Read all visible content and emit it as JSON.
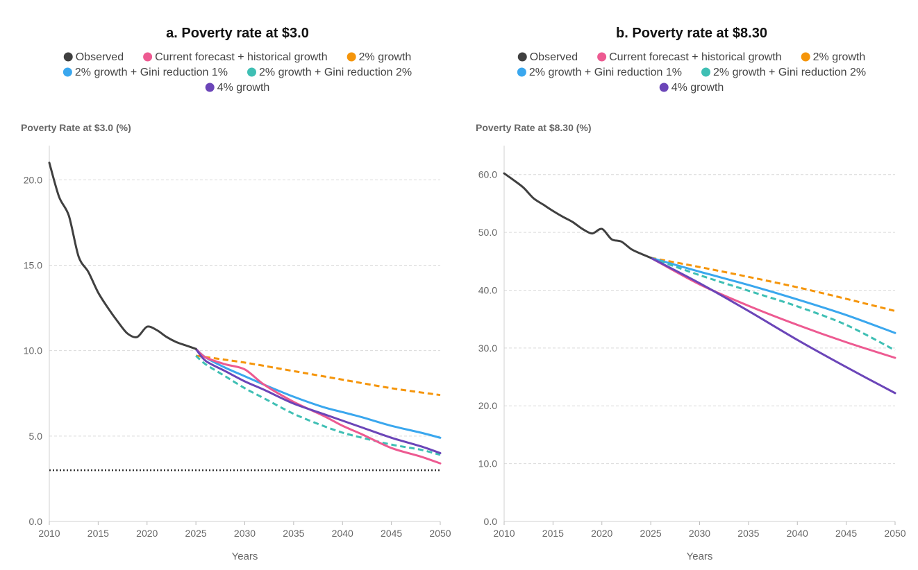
{
  "colors": {
    "observed": "#404040",
    "historical": "#ed5a91",
    "growth2": "#f5950a",
    "gini1": "#3aa7ee",
    "gini2": "#3fbfb4",
    "growth4": "#6b45b8"
  },
  "legend": [
    {
      "key": "observed",
      "label": "Observed"
    },
    {
      "key": "historical",
      "label": "Current forecast + historical growth"
    },
    {
      "key": "growth2",
      "label": "2% growth"
    },
    {
      "key": "gini1",
      "label": "2% growth + Gini reduction 1%"
    },
    {
      "key": "gini2",
      "label": "2% growth + Gini reduction 2%"
    },
    {
      "key": "growth4",
      "label": "4% growth"
    }
  ],
  "chart_data": [
    {
      "type": "line",
      "title": "a. Poverty rate at $3.0",
      "ylabel": "Poverty Rate at $3.0 (%)",
      "xlabel": "Years",
      "xlim": [
        2010,
        2050
      ],
      "ylim": [
        0,
        22
      ],
      "xticks": [
        2010,
        2015,
        2020,
        2025,
        2030,
        2035,
        2040,
        2045,
        2050
      ],
      "yticks": [
        0,
        5,
        10,
        15,
        20
      ],
      "ytick_labels": [
        "0.0",
        "5.0",
        "10.0",
        "15.0",
        "20.0"
      ],
      "grid": true,
      "reference_line": {
        "y": 3.0,
        "style": "dotted"
      },
      "series": [
        {
          "name": "Observed",
          "key": "observed",
          "dashed": false,
          "x": [
            2010,
            2011,
            2012,
            2013,
            2014,
            2015,
            2016,
            2017,
            2018,
            2019,
            2020,
            2021,
            2022,
            2023,
            2024,
            2025
          ],
          "y": [
            21.0,
            19.0,
            17.9,
            15.5,
            14.6,
            13.4,
            12.5,
            11.7,
            11.0,
            10.8,
            11.4,
            11.2,
            10.8,
            10.5,
            10.3,
            10.1
          ]
        },
        {
          "name": "Current forecast + historical growth",
          "key": "historical",
          "dashed": false,
          "x": [
            2025,
            2026,
            2028,
            2030,
            2032,
            2035,
            2038,
            2040,
            2042,
            2045,
            2048,
            2050
          ],
          "y": [
            10.1,
            9.6,
            9.2,
            8.9,
            8.0,
            7.0,
            6.2,
            5.6,
            5.1,
            4.3,
            3.8,
            3.4
          ]
        },
        {
          "name": "2% growth",
          "key": "growth2",
          "dashed": true,
          "x": [
            2025,
            2030,
            2035,
            2040,
            2045,
            2050
          ],
          "y": [
            9.7,
            9.3,
            8.8,
            8.3,
            7.8,
            7.4
          ]
        },
        {
          "name": "2% growth + Gini reduction 1%",
          "key": "gini1",
          "dashed": false,
          "x": [
            2025,
            2026,
            2028,
            2030,
            2032,
            2035,
            2038,
            2040,
            2042,
            2045,
            2048,
            2050
          ],
          "y": [
            10.1,
            9.6,
            9.0,
            8.5,
            8.0,
            7.3,
            6.7,
            6.4,
            6.1,
            5.6,
            5.2,
            4.9
          ]
        },
        {
          "name": "2% growth + Gini reduction 2%",
          "key": "gini2",
          "dashed": true,
          "x": [
            2025,
            2026,
            2028,
            2030,
            2032,
            2035,
            2038,
            2040,
            2042,
            2045,
            2048,
            2050
          ],
          "y": [
            9.7,
            9.2,
            8.5,
            7.8,
            7.2,
            6.3,
            5.6,
            5.2,
            4.9,
            4.5,
            4.2,
            3.9
          ]
        },
        {
          "name": "4% growth",
          "key": "growth4",
          "dashed": false,
          "x": [
            2025,
            2026,
            2028,
            2030,
            2032,
            2035,
            2038,
            2040,
            2042,
            2045,
            2048,
            2050
          ],
          "y": [
            10.1,
            9.4,
            8.8,
            8.2,
            7.7,
            6.9,
            6.3,
            5.9,
            5.5,
            4.9,
            4.4,
            4.0
          ]
        }
      ]
    },
    {
      "type": "line",
      "title": "b. Poverty rate at $8.30",
      "ylabel": "Poverty Rate at $8.30 (%)",
      "xlabel": "Years",
      "xlim": [
        2010,
        2050
      ],
      "ylim": [
        0,
        65
      ],
      "xticks": [
        2010,
        2015,
        2020,
        2025,
        2030,
        2035,
        2040,
        2045,
        2050
      ],
      "yticks": [
        0,
        10,
        20,
        30,
        40,
        50,
        60
      ],
      "ytick_labels": [
        "0.0",
        "10.0",
        "20.0",
        "30.0",
        "40.0",
        "50.0",
        "60.0"
      ],
      "grid": true,
      "series": [
        {
          "name": "Observed",
          "key": "observed",
          "dashed": false,
          "x": [
            2010,
            2011,
            2012,
            2013,
            2014,
            2015,
            2016,
            2017,
            2018,
            2019,
            2020,
            2021,
            2022,
            2023,
            2024,
            2025
          ],
          "y": [
            60.2,
            59.0,
            57.7,
            55.9,
            54.8,
            53.7,
            52.7,
            51.8,
            50.6,
            49.8,
            50.6,
            48.8,
            48.4,
            47.1,
            46.3,
            45.6
          ]
        },
        {
          "name": "Current forecast + historical growth",
          "key": "historical",
          "dashed": false,
          "x": [
            2025,
            2030,
            2035,
            2040,
            2045,
            2050
          ],
          "y": [
            45.6,
            41.0,
            37.3,
            34.0,
            31.0,
            28.3
          ]
        },
        {
          "name": "2% growth",
          "key": "growth2",
          "dashed": true,
          "x": [
            2025,
            2030,
            2035,
            2040,
            2045,
            2050
          ],
          "y": [
            45.6,
            44.0,
            42.3,
            40.5,
            38.5,
            36.4
          ]
        },
        {
          "name": "2% growth + Gini reduction 1%",
          "key": "gini1",
          "dashed": false,
          "x": [
            2025,
            2030,
            2035,
            2040,
            2045,
            2050
          ],
          "y": [
            45.6,
            43.2,
            40.9,
            38.4,
            35.7,
            32.6
          ]
        },
        {
          "name": "2% growth + Gini reduction 2%",
          "key": "gini2",
          "dashed": true,
          "x": [
            2025,
            2030,
            2035,
            2040,
            2045,
            2050
          ],
          "y": [
            45.6,
            42.6,
            39.9,
            37.2,
            34.0,
            29.6
          ]
        },
        {
          "name": "4% growth",
          "key": "growth4",
          "dashed": false,
          "x": [
            2025,
            2030,
            2035,
            2040,
            2045,
            2050
          ],
          "y": [
            45.6,
            41.2,
            36.4,
            31.4,
            26.7,
            22.2
          ]
        }
      ]
    }
  ]
}
